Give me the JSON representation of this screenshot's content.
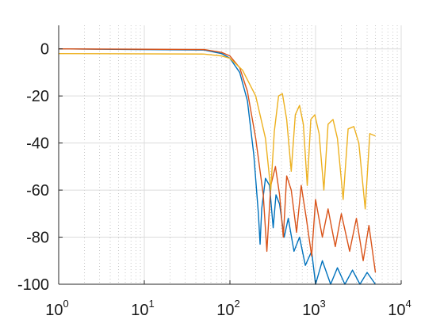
{
  "chart_data": {
    "type": "line",
    "title": "",
    "xlabel": "",
    "ylabel": "",
    "xscale": "log",
    "xlim": [
      1,
      10000
    ],
    "ylim": [
      -100,
      10
    ],
    "grid": {
      "major": true,
      "minor_x": true
    },
    "legend": "none",
    "x_ticks": [
      {
        "base": "10",
        "exp": "0"
      },
      {
        "base": "10",
        "exp": "1"
      },
      {
        "base": "10",
        "exp": "2"
      },
      {
        "base": "10",
        "exp": "3"
      },
      {
        "base": "10",
        "exp": "4"
      }
    ],
    "y_ticks": [
      "0",
      "-20",
      "-40",
      "-60",
      "-80",
      "-100"
    ],
    "series": [
      {
        "color": "#0072BD",
        "points": [
          [
            1,
            0
          ],
          [
            50,
            -0.5
          ],
          [
            80,
            -2
          ],
          [
            100,
            -4
          ],
          [
            130,
            -10
          ],
          [
            160,
            -22
          ],
          [
            190,
            -45
          ],
          [
            215,
            -70
          ],
          [
            225,
            -83
          ],
          [
            235,
            -68
          ],
          [
            260,
            -55
          ],
          [
            290,
            -58
          ],
          [
            320,
            -76
          ],
          [
            345,
            -62
          ],
          [
            380,
            -66
          ],
          [
            430,
            -80
          ],
          [
            480,
            -72
          ],
          [
            560,
            -86
          ],
          [
            650,
            -80
          ],
          [
            760,
            -92
          ],
          [
            900,
            -86
          ],
          [
            1000,
            -100
          ],
          [
            1200,
            -90
          ],
          [
            1500,
            -100
          ],
          [
            1800,
            -93
          ],
          [
            2200,
            -100
          ],
          [
            2700,
            -94
          ],
          [
            3300,
            -100
          ],
          [
            4000,
            -95
          ],
          [
            5000,
            -100
          ]
        ]
      },
      {
        "color": "#D95319",
        "points": [
          [
            1,
            0
          ],
          [
            50,
            -0.3
          ],
          [
            80,
            -1.5
          ],
          [
            100,
            -3
          ],
          [
            130,
            -8
          ],
          [
            160,
            -18
          ],
          [
            200,
            -38
          ],
          [
            245,
            -62
          ],
          [
            270,
            -86
          ],
          [
            300,
            -58
          ],
          [
            340,
            -50
          ],
          [
            380,
            -62
          ],
          [
            420,
            -80
          ],
          [
            460,
            -54
          ],
          [
            520,
            -60
          ],
          [
            600,
            -78
          ],
          [
            680,
            -58
          ],
          [
            780,
            -72
          ],
          [
            900,
            -88
          ],
          [
            1000,
            -64
          ],
          [
            1200,
            -80
          ],
          [
            1400,
            -68
          ],
          [
            1700,
            -84
          ],
          [
            2000,
            -70
          ],
          [
            2500,
            -86
          ],
          [
            3000,
            -72
          ],
          [
            3600,
            -90
          ],
          [
            4200,
            -75
          ],
          [
            5000,
            -95
          ]
        ]
      },
      {
        "color": "#EDB120",
        "points": [
          [
            1,
            -2
          ],
          [
            50,
            -2.2
          ],
          [
            80,
            -3
          ],
          [
            100,
            -4
          ],
          [
            140,
            -9
          ],
          [
            200,
            -20
          ],
          [
            260,
            -38
          ],
          [
            300,
            -60
          ],
          [
            330,
            -35
          ],
          [
            370,
            -20
          ],
          [
            410,
            -19
          ],
          [
            460,
            -30
          ],
          [
            520,
            -52
          ],
          [
            580,
            -28
          ],
          [
            650,
            -24
          ],
          [
            720,
            -32
          ],
          [
            800,
            -58
          ],
          [
            880,
            -30
          ],
          [
            980,
            -28
          ],
          [
            1100,
            -36
          ],
          [
            1250,
            -60
          ],
          [
            1400,
            -32
          ],
          [
            1600,
            -30
          ],
          [
            1800,
            -38
          ],
          [
            2100,
            -64
          ],
          [
            2400,
            -34
          ],
          [
            2800,
            -33
          ],
          [
            3200,
            -40
          ],
          [
            3800,
            -68
          ],
          [
            4300,
            -36
          ],
          [
            5000,
            -37
          ]
        ]
      }
    ]
  }
}
